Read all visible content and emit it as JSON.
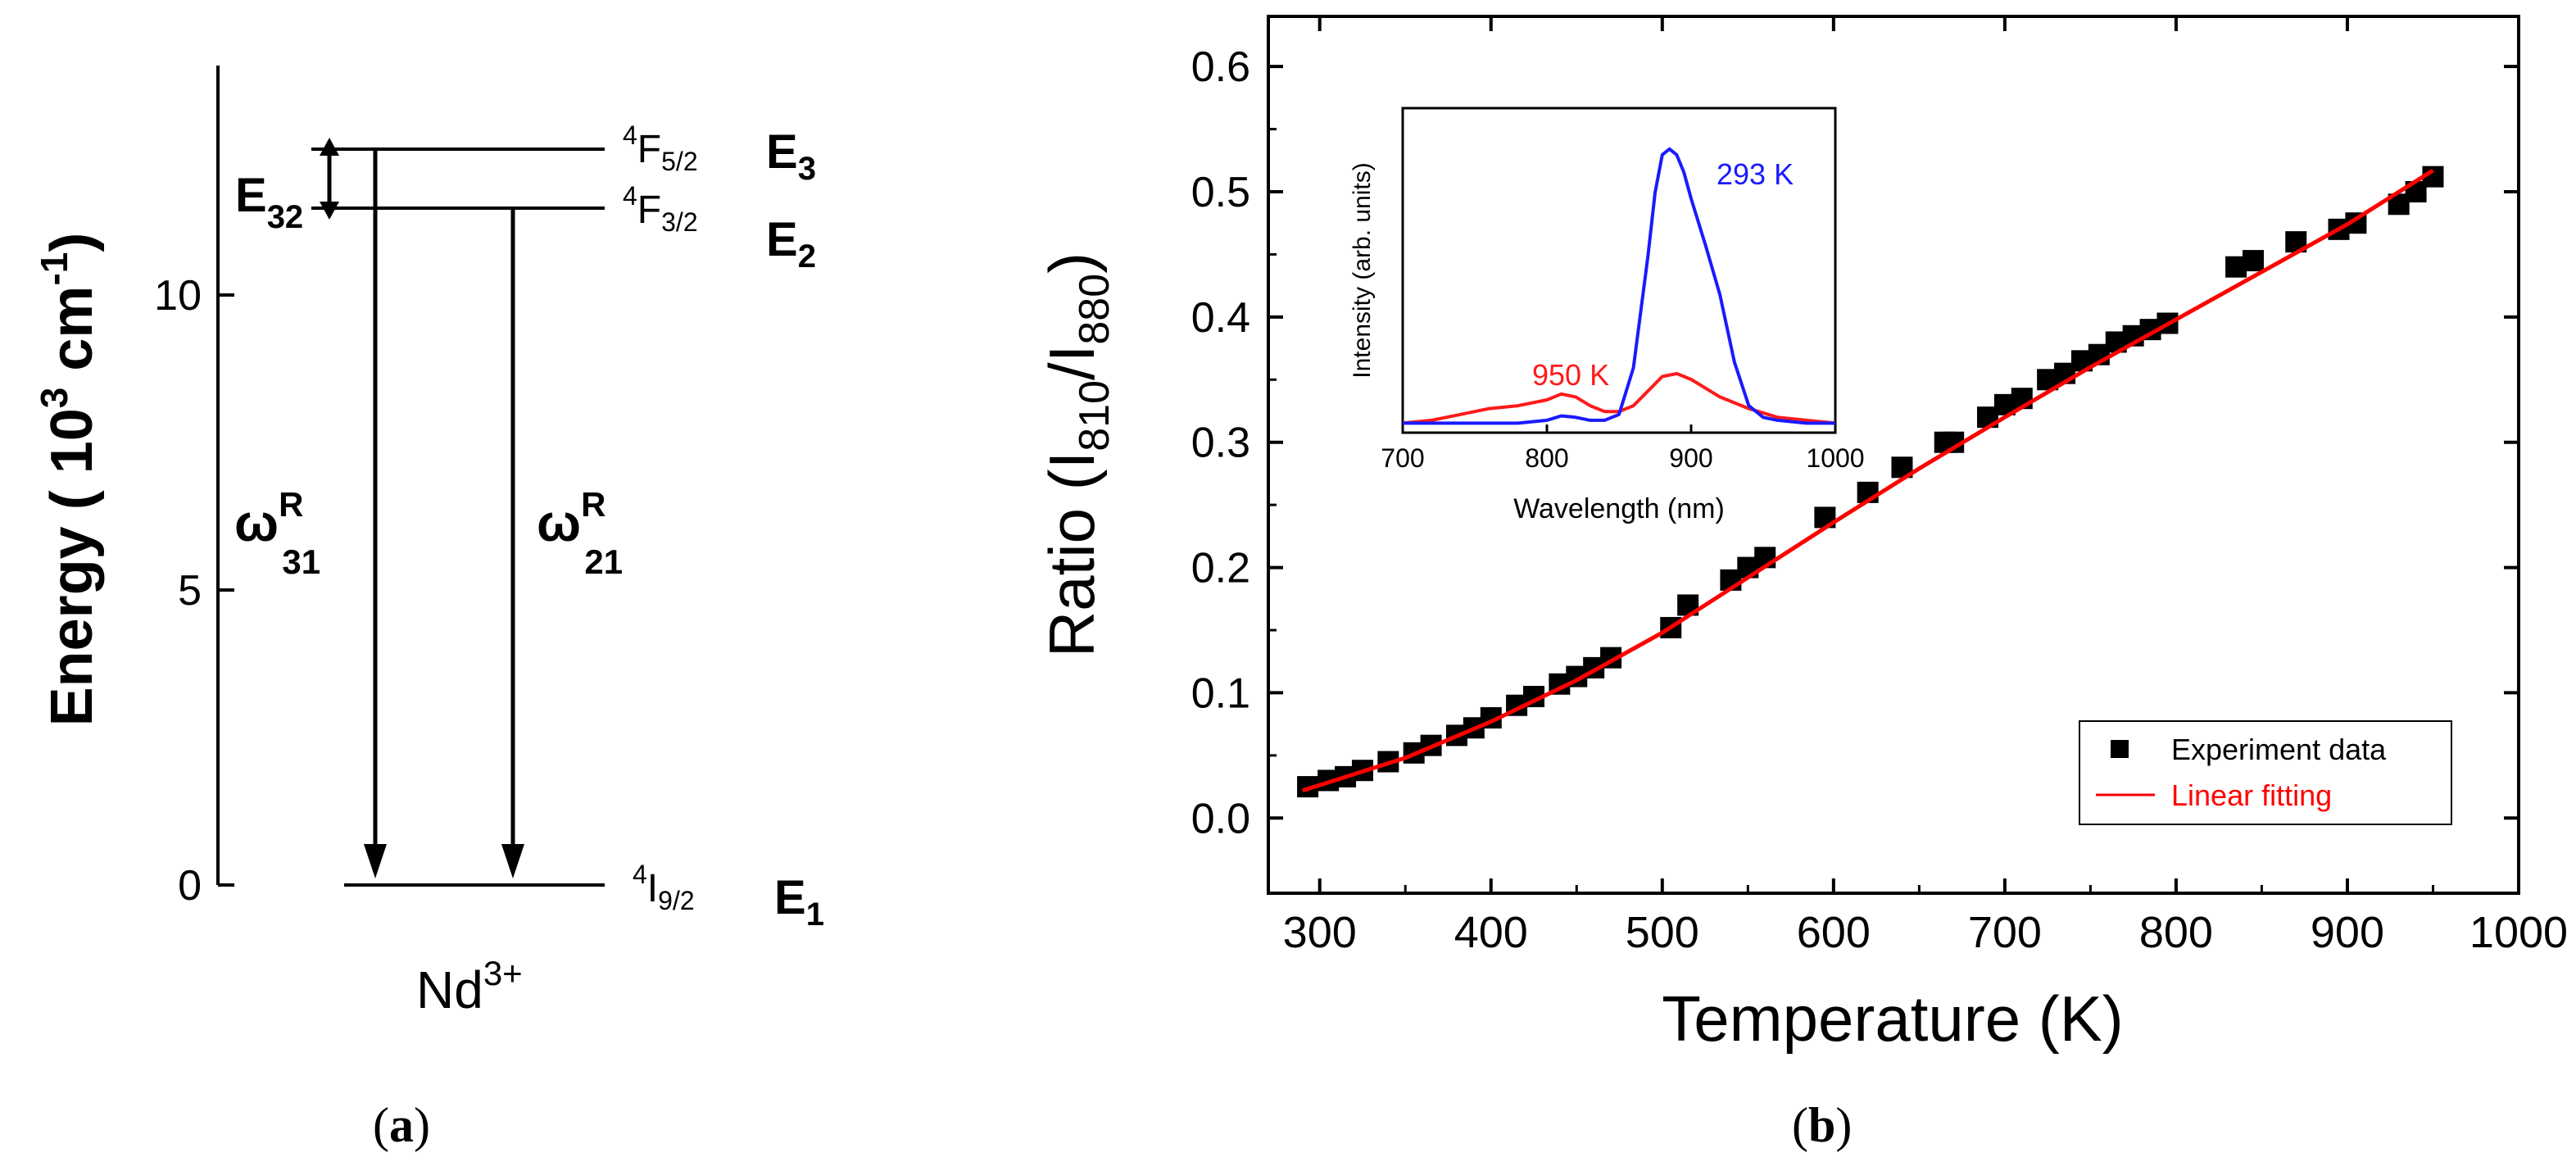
{
  "panel_labels": {
    "a_open": "(",
    "a_letter": "a",
    "a_close": ")",
    "b_open": "(",
    "b_letter": "b",
    "b_close": ")"
  },
  "chart_data": [
    {
      "type": "diagram",
      "ylabel_main": "Energy ( 10",
      "ylabel_sup": "3",
      "ylabel_unit": " cm",
      "ylabel_unit_sup": "-1",
      "ylabel_close": ")",
      "ylim": [
        0,
        14
      ],
      "yticks": [
        0,
        5,
        10
      ],
      "ion": "Nd",
      "ion_charge": "3+",
      "levels": [
        {
          "term_sup": "4",
          "term": "F",
          "term_sub": "5/2",
          "name": "E",
          "name_sub": "3",
          "energy": 12.5
        },
        {
          "term_sup": "4",
          "term": "F",
          "term_sub": "3/2",
          "name": "E",
          "name_sub": "2",
          "energy": 11.5
        },
        {
          "term_sup": "4",
          "term": "I",
          "term_sub": "9/2",
          "name": "E",
          "name_sub": "1",
          "energy": 0
        }
      ],
      "gap_label": "E",
      "gap_label_sub": "32",
      "transitions": [
        {
          "symbol": "ω",
          "sup": "R",
          "sub": "31"
        },
        {
          "symbol": "ω",
          "sup": "R",
          "sub": "21"
        }
      ]
    },
    {
      "type": "scatter",
      "xlabel": "Temperature (K)",
      "ylabel_pre": "Ratio (I",
      "ylabel_sub1": "810",
      "ylabel_mid": "/I",
      "ylabel_sub2": "880",
      "ylabel_post": ")",
      "xlim": [
        270,
        1000
      ],
      "ylim": [
        -0.06,
        0.64
      ],
      "xticks": [
        300,
        400,
        500,
        600,
        700,
        800,
        900,
        1000
      ],
      "yticks": [
        0.0,
        0.1,
        0.2,
        0.3,
        0.4,
        0.5,
        0.6
      ],
      "legend": {
        "placement": "bottom-right",
        "items": [
          "Experiment data",
          "Linear fitting"
        ]
      },
      "series": [
        {
          "name": "Experiment data",
          "color": "#000000",
          "marker": "square",
          "x": [
            293,
            305,
            315,
            325,
            340,
            355,
            365,
            380,
            390,
            400,
            415,
            425,
            440,
            450,
            460,
            470,
            505,
            515,
            540,
            550,
            560,
            595,
            620,
            640,
            665,
            670,
            690,
            700,
            710,
            725,
            735,
            745,
            755,
            765,
            775,
            785,
            795,
            835,
            845,
            870,
            895,
            905,
            930,
            940,
            950
          ],
          "y": [
            0.025,
            0.03,
            0.033,
            0.038,
            0.045,
            0.052,
            0.058,
            0.066,
            0.072,
            0.08,
            0.09,
            0.097,
            0.107,
            0.113,
            0.12,
            0.128,
            0.152,
            0.17,
            0.19,
            0.2,
            0.208,
            0.24,
            0.26,
            0.28,
            0.3,
            0.3,
            0.32,
            0.33,
            0.335,
            0.35,
            0.355,
            0.365,
            0.37,
            0.38,
            0.385,
            0.39,
            0.395,
            0.44,
            0.445,
            0.46,
            0.47,
            0.475,
            0.49,
            0.5,
            0.512
          ]
        },
        {
          "name": "Linear fitting",
          "color": "#ff0000",
          "line": true,
          "x": [
            290,
            350,
            400,
            450,
            500,
            550,
            600,
            650,
            700,
            750,
            800,
            850,
            900,
            950
          ],
          "y": [
            0.022,
            0.048,
            0.077,
            0.11,
            0.148,
            0.192,
            0.236,
            0.279,
            0.32,
            0.36,
            0.398,
            0.436,
            0.474,
            0.517
          ]
        }
      ],
      "inset": {
        "type": "line",
        "xlabel": "Wavelength (nm)",
        "ylabel": "Intensity (arb. units)",
        "xlim": [
          700,
          1000
        ],
        "xticks": [
          700,
          800,
          900,
          1000
        ],
        "series": [
          {
            "name": "293 K",
            "color": "#1a1aff",
            "x": [
              700,
              720,
              740,
              760,
              780,
              800,
              810,
              820,
              830,
              840,
              850,
              860,
              870,
              875,
              880,
              885,
              890,
              895,
              900,
              905,
              910,
              920,
              930,
              940,
              950,
              960,
              980,
              1000
            ],
            "y": [
              0.01,
              0.01,
              0.01,
              0.01,
              0.01,
              0.02,
              0.035,
              0.03,
              0.02,
              0.02,
              0.04,
              0.2,
              0.58,
              0.8,
              0.93,
              0.95,
              0.93,
              0.87,
              0.78,
              0.7,
              0.62,
              0.45,
              0.22,
              0.07,
              0.03,
              0.02,
              0.01,
              0.01
            ]
          },
          {
            "name": "950 K",
            "color": "#ff1a1a",
            "x": [
              700,
              720,
              740,
              760,
              780,
              800,
              810,
              820,
              830,
              840,
              850,
              860,
              870,
              880,
              890,
              900,
              910,
              920,
              940,
              960,
              980,
              1000
            ],
            "y": [
              0.01,
              0.02,
              0.04,
              0.06,
              0.07,
              0.09,
              0.11,
              0.1,
              0.07,
              0.05,
              0.05,
              0.07,
              0.12,
              0.17,
              0.18,
              0.16,
              0.13,
              0.1,
              0.06,
              0.03,
              0.02,
              0.01
            ]
          }
        ]
      }
    }
  ]
}
